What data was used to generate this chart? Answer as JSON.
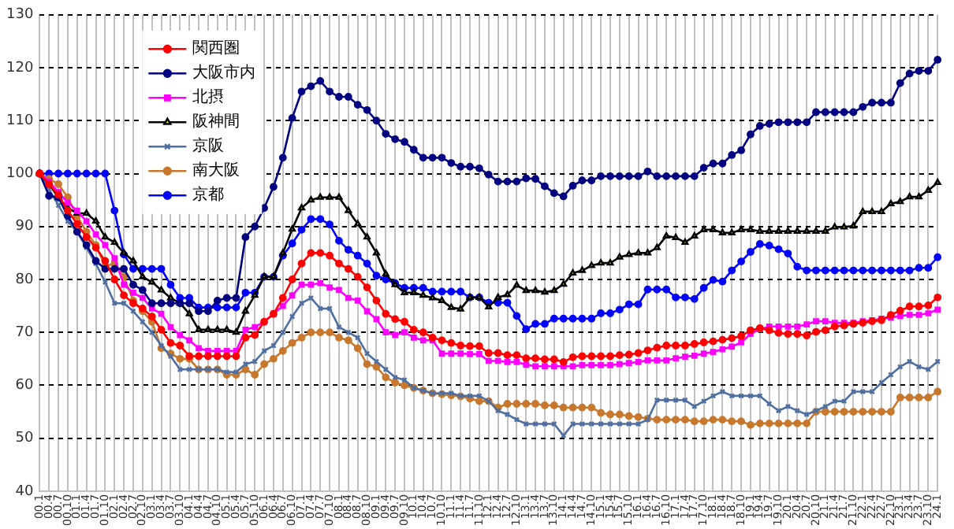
{
  "chart_data": {
    "type": "line",
    "categories": [
      "00.1",
      "00.4",
      "00.7",
      "00.10",
      "01.1",
      "01.4",
      "01.7",
      "01.10",
      "02.1",
      "02.4",
      "02.7",
      "02.10",
      "03.1",
      "03.4",
      "03.7",
      "03.10",
      "04.1",
      "04.4",
      "04.7",
      "04.10",
      "05.1",
      "05.4",
      "05.7",
      "05.10",
      "06.1",
      "06.4",
      "06.7",
      "06.10",
      "07.1",
      "07.4",
      "07.7",
      "07.10",
      "08.1",
      "08.4",
      "08.7",
      "08.10",
      "09.1",
      "09.4",
      "09.7",
      "09.10",
      "10.1",
      "10.4",
      "10.7",
      "10.10",
      "11.1",
      "11.4",
      "11.7",
      "11.10",
      "12.1",
      "12.4",
      "12.7",
      "12.10",
      "13.1",
      "13.4",
      "13.7",
      "13.10",
      "14.1",
      "14.4",
      "14.7",
      "14.10",
      "15.1",
      "15.4",
      "15.7",
      "15.10",
      "16.1",
      "16.4",
      "16.7",
      "16.10",
      "17.1",
      "17.4",
      "17.7",
      "17.10",
      "18.1",
      "18.4",
      "18.7",
      "18.10",
      "19.1",
      "19.4",
      "19.7",
      "19.10",
      "20.1",
      "20.4",
      "20.7",
      "20.10",
      "21.1",
      "21.4",
      "21.7",
      "21.10",
      "22.1",
      "22.4",
      "22.7",
      "22.10",
      "23.1",
      "23.4",
      "23.7",
      "23.10",
      "24.1"
    ],
    "series": [
      {
        "name": "関西圏",
        "color": "#ff0000",
        "marker": "circle",
        "values": [
          100,
          98,
          96,
          93,
          90.5,
          88,
          86,
          83.5,
          80,
          77,
          75.5,
          74.5,
          73,
          70.5,
          68,
          67.5,
          65.5,
          65.5,
          65.5,
          65.5,
          65.5,
          65.5,
          69,
          69.5,
          72,
          73.5,
          76.5,
          80,
          83,
          85,
          85,
          84.5,
          83,
          82,
          80.5,
          78.5,
          76,
          73.5,
          72.5,
          72,
          70.5,
          70,
          69,
          68.5,
          68,
          67.5,
          67.4,
          67.4,
          66.1,
          66.1,
          65.7,
          65.7,
          65.1,
          65.1,
          64.9,
          64.9,
          64.4,
          65.3,
          65.5,
          65.5,
          65.5,
          65.5,
          65.7,
          65.8,
          66.1,
          66.6,
          67.1,
          67.5,
          67.5,
          67.5,
          67.8,
          68.1,
          68.3,
          68.6,
          68.9,
          69.3,
          70.4,
          70.8,
          70.4,
          69.9,
          69.7,
          69.7,
          69.4,
          70.1,
          70.4,
          71.1,
          71.3,
          71.6,
          71.8,
          72.1,
          72.3,
          73.3,
          74.1,
          74.9,
          74.9,
          75.1,
          76.6
        ]
      },
      {
        "name": "大阪市内",
        "color": "#000080",
        "marker": "circle",
        "values": [
          100,
          95.8,
          95.5,
          92,
          89,
          86.5,
          83.5,
          82,
          82,
          82,
          79,
          78,
          75.5,
          75.5,
          75.5,
          75.5,
          75.5,
          74,
          74,
          76,
          76.5,
          76.5,
          88,
          90,
          93.5,
          97.5,
          103,
          110.5,
          115.5,
          116.5,
          117.5,
          115.5,
          114.5,
          114.5,
          113,
          112,
          110,
          107.5,
          106.5,
          106,
          104.5,
          103,
          103,
          103,
          102,
          101.3,
          101.3,
          101.0,
          99.8,
          98.5,
          98.5,
          98.5,
          99.1,
          99.0,
          97.6,
          96.3,
          95.7,
          97.7,
          98.7,
          98.7,
          99.5,
          99.5,
          99.5,
          99.5,
          99.5,
          100.4,
          99.5,
          99.5,
          99.5,
          99.5,
          99.5,
          101.1,
          101.9,
          101.9,
          103.5,
          104.4,
          107.4,
          109.0,
          109.4,
          109.7,
          109.7,
          109.7,
          109.7,
          111.6,
          111.6,
          111.6,
          111.6,
          111.6,
          112.6,
          113.4,
          113.4,
          113.4,
          117.1,
          118.9,
          119.4,
          119.4,
          121.5
        ]
      },
      {
        "name": "北摂",
        "color": "#ff00ff",
        "marker": "square",
        "values": [
          100,
          98.5,
          96.5,
          94.5,
          93,
          91,
          88.5,
          86.5,
          84,
          79,
          77.5,
          76.5,
          74.5,
          73.5,
          71,
          69.5,
          68.5,
          67,
          66.5,
          66.5,
          66.5,
          66.5,
          70.5,
          71,
          72,
          73.5,
          75,
          77,
          79,
          79,
          79.3,
          78.5,
          78,
          76.5,
          76,
          74,
          72.5,
          70,
          69.5,
          70,
          69,
          68.5,
          68.5,
          66,
          66,
          66,
          65.9,
          65.9,
          64.6,
          64.6,
          64.4,
          64.4,
          63.9,
          63.6,
          63.6,
          63.6,
          63.6,
          63.6,
          63.8,
          63.8,
          63.8,
          63.8,
          64.0,
          64.2,
          64.4,
          64.7,
          64.7,
          64.7,
          65.1,
          65.4,
          65.6,
          66.0,
          66.3,
          66.8,
          67.3,
          68.1,
          69.7,
          70.6,
          71.1,
          71.1,
          71.1,
          71.1,
          71.5,
          72.1,
          72.1,
          71.8,
          71.8,
          71.8,
          72.1,
          72.3,
          72.6,
          72.8,
          73.1,
          73.3,
          73.3,
          73.6,
          74.3
        ]
      },
      {
        "name": "阪神間",
        "color": "#000000",
        "marker": "triangle",
        "values": [
          100,
          98,
          95.5,
          93.5,
          92.5,
          92.5,
          91,
          88,
          87,
          85,
          83.5,
          80.5,
          79.5,
          78,
          76.5,
          75.5,
          73.5,
          70.5,
          70.5,
          70.5,
          70.5,
          70,
          74,
          77,
          80.5,
          80.5,
          85,
          89.5,
          93.5,
          95,
          95.5,
          95.5,
          95.5,
          93,
          90.5,
          88,
          85,
          81,
          79,
          77.5,
          77.5,
          77,
          76.5,
          76,
          74.7,
          74.4,
          76.6,
          76.6,
          74.8,
          76.6,
          77.1,
          78.9,
          77.9,
          77.9,
          77.6,
          77.9,
          79.1,
          81.2,
          81.7,
          82.6,
          83.1,
          83.1,
          84.2,
          84.7,
          85.0,
          85.0,
          86.0,
          88.2,
          87.9,
          87.0,
          88.2,
          89.4,
          89.4,
          88.8,
          88.8,
          89.4,
          89.4,
          89.1,
          89.1,
          89.1,
          89.1,
          89.1,
          89.1,
          89.1,
          89.1,
          89.9,
          89.9,
          90.1,
          92.8,
          92.8,
          92.8,
          94.3,
          94.7,
          95.6,
          95.6,
          96.8,
          98.3
        ]
      },
      {
        "name": "京阪",
        "color": "#4f6fa0",
        "marker": "cross",
        "values": [
          100,
          97,
          94,
          91,
          89,
          86,
          83,
          79.5,
          75.5,
          75.5,
          74,
          72,
          70,
          67.5,
          65.5,
          63,
          63,
          63,
          63,
          63,
          62.5,
          62.5,
          64,
          64.5,
          66.5,
          67.5,
          70,
          73,
          75.5,
          76.5,
          74.5,
          74.5,
          71,
          70,
          69,
          66,
          64.5,
          63,
          61.5,
          61,
          59.5,
          59,
          58.5,
          58.5,
          58.5,
          58,
          58.0,
          58.0,
          57.0,
          55.2,
          54.5,
          53.5,
          52.7,
          52.7,
          52.7,
          52.7,
          50.5,
          52.7,
          52.7,
          52.7,
          52.7,
          52.7,
          52.7,
          52.7,
          52.7,
          53.5,
          57.2,
          57.2,
          57.2,
          57.2,
          56.0,
          57.0,
          58.0,
          58.8,
          58.0,
          58.0,
          58.0,
          58.0,
          56.5,
          55.2,
          56.0,
          55.2,
          54.5,
          55.2,
          56.0,
          57.0,
          57.0,
          58.8,
          58.8,
          58.8,
          60.5,
          62.0,
          63.5,
          64.5,
          63.5,
          63.0,
          64.5
        ]
      },
      {
        "name": "南大阪",
        "color": "#c8782d",
        "marker": "circle",
        "values": [
          100,
          99,
          98,
          95.5,
          92,
          89,
          86.5,
          82.5,
          83,
          80.5,
          76,
          74,
          72,
          67,
          66,
          65,
          65,
          63,
          63,
          63,
          62,
          62,
          63,
          62,
          64,
          65,
          66.5,
          68,
          69,
          70,
          70,
          70,
          69,
          68.5,
          67,
          64,
          63.5,
          61.5,
          60.5,
          60,
          59.5,
          59,
          58.5,
          58.3,
          58.1,
          57.9,
          57.5,
          57.0,
          57.0,
          55.8,
          56.5,
          56.5,
          56.5,
          56.5,
          56.2,
          56.2,
          55.8,
          55.8,
          55.8,
          55.8,
          54.8,
          54.5,
          54.5,
          54.2,
          54.0,
          53.7,
          53.5,
          53.5,
          53.5,
          53.5,
          53.2,
          53.2,
          53.5,
          53.5,
          53.2,
          53.2,
          52.5,
          52.8,
          52.8,
          52.8,
          52.8,
          52.8,
          52.8,
          55.0,
          55.0,
          55.0,
          55.0,
          55.0,
          55.0,
          55.0,
          55.0,
          55.0,
          57.7,
          57.7,
          57.7,
          57.7,
          58.8
        ]
      },
      {
        "name": "京都",
        "color": "#0000ff",
        "marker": "circle",
        "values": [
          100,
          100,
          100,
          100,
          100,
          100,
          100,
          100,
          93,
          84.7,
          82,
          82,
          82,
          82,
          79,
          76.5,
          76.5,
          74.7,
          74.7,
          74.7,
          74.7,
          74.7,
          77.5,
          77.5,
          80.5,
          80.5,
          84.5,
          86.8,
          89.4,
          91.4,
          91.4,
          90.4,
          87.3,
          85.6,
          84.5,
          83.0,
          80.7,
          80.0,
          79.3,
          78.4,
          78.4,
          78.4,
          77.7,
          77.7,
          77.7,
          77.7,
          76.6,
          76.6,
          75.6,
          75.6,
          75.6,
          73.1,
          70.6,
          71.6,
          71.6,
          72.6,
          72.6,
          72.6,
          72.6,
          72.6,
          73.6,
          73.6,
          74.3,
          75.3,
          75.3,
          78.1,
          78.1,
          78.1,
          76.6,
          76.6,
          76.3,
          78.4,
          79.9,
          79.6,
          81.7,
          83.4,
          85.2,
          86.7,
          86.4,
          85.7,
          84.9,
          82.4,
          81.7,
          81.7,
          81.7,
          81.7,
          81.7,
          81.7,
          81.7,
          81.7,
          81.7,
          81.7,
          81.7,
          81.7,
          82.2,
          82.2,
          84.2
        ]
      }
    ],
    "ylim": [
      40,
      130
    ],
    "yticks": [
      40,
      50,
      60,
      70,
      80,
      90,
      100,
      110,
      120,
      130
    ],
    "grid": true,
    "legend": "top left"
  }
}
